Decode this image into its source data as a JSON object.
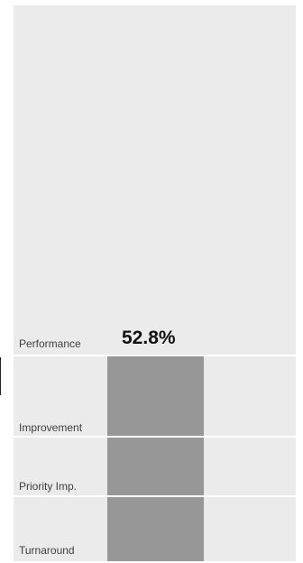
{
  "rows": [
    {
      "label": "Performance",
      "value_text": "52.8%"
    },
    {
      "label": "Improvement"
    },
    {
      "label": "Priority Imp."
    },
    {
      "label": "Turnaround"
    }
  ],
  "colors": {
    "panel_bg": "#ebebeb",
    "bar_fill": "#979797",
    "separator": "#ffffff"
  }
}
